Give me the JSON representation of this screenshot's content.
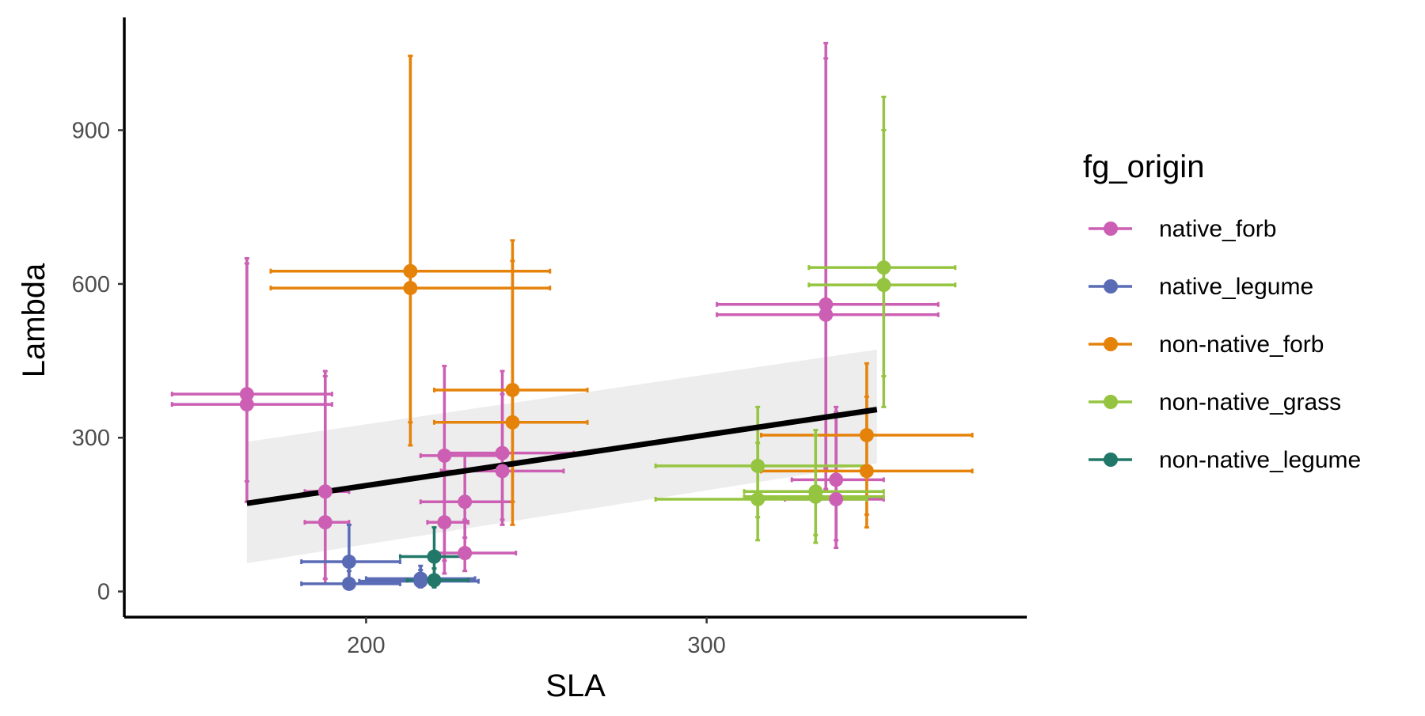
{
  "chart_data": {
    "type": "scatter",
    "xlabel": "SLA",
    "ylabel": "Lambda",
    "xlim": [
      129,
      394
    ],
    "ylim": [
      -50,
      1120
    ],
    "x_ticks": [
      200,
      300
    ],
    "x_tick_labels": [
      "200",
      "300"
    ],
    "y_ticks": [
      0,
      300,
      600,
      900
    ],
    "y_tick_labels": [
      "0",
      "300",
      "600",
      "900"
    ],
    "grid": false,
    "legend": {
      "title": "fg_origin",
      "placement": "right",
      "entries": [
        "native_forb",
        "native_legume",
        "non-native_forb",
        "non-native_grass",
        "non-native_legume"
      ]
    },
    "colors": {
      "native_forb": "#cc5fb3",
      "native_legume": "#5a6bb5",
      "non-native_forb": "#e5820a",
      "non-native_grass": "#95c540",
      "non-native_legume": "#217869",
      "fit_line": "#000000",
      "confidence_band": "#ebebeb"
    },
    "fit": {
      "method": "linear",
      "x": [
        165,
        350
      ],
      "y": [
        172,
        355
      ],
      "band_lower": [
        55,
        250
      ],
      "band_upper": [
        292,
        472
      ]
    },
    "series": [
      {
        "name": "native_forb",
        "points": [
          {
            "x": 165,
            "y": 385,
            "xmin": 143,
            "xmax": 190,
            "ymin": 175,
            "ymax": 650
          },
          {
            "x": 165,
            "y": 365,
            "xmin": 143,
            "xmax": 190,
            "ymin": 215,
            "ymax": 640
          },
          {
            "x": 188,
            "y": 195,
            "xmin": 182,
            "xmax": 195,
            "ymin": 25,
            "ymax": 430
          },
          {
            "x": 188,
            "y": 135,
            "xmin": 182,
            "xmax": 195,
            "ymin": 15,
            "ymax": 420
          },
          {
            "x": 223,
            "y": 265,
            "xmin": 216,
            "xmax": 241,
            "ymin": 60,
            "ymax": 440
          },
          {
            "x": 223,
            "y": 135,
            "xmin": 218,
            "xmax": 230,
            "ymin": 35,
            "ymax": 265
          },
          {
            "x": 229,
            "y": 175,
            "xmin": 216,
            "xmax": 243,
            "ymin": 105,
            "ymax": 270
          },
          {
            "x": 229,
            "y": 75,
            "xmin": 219,
            "xmax": 244,
            "ymin": 40,
            "ymax": 140
          },
          {
            "x": 240,
            "y": 270,
            "xmin": 224,
            "xmax": 261,
            "ymin": 130,
            "ymax": 430
          },
          {
            "x": 240,
            "y": 235,
            "xmin": 222,
            "xmax": 258,
            "ymin": 140,
            "ymax": 385
          },
          {
            "x": 335,
            "y": 560,
            "xmin": 303,
            "xmax": 368,
            "ymin": 240,
            "ymax": 1070
          },
          {
            "x": 335,
            "y": 540,
            "xmin": 303,
            "xmax": 368,
            "ymin": 200,
            "ymax": 1040
          },
          {
            "x": 338,
            "y": 218,
            "xmin": 325,
            "xmax": 352,
            "ymin": 100,
            "ymax": 360
          },
          {
            "x": 338,
            "y": 180,
            "xmin": 323,
            "xmax": 352,
            "ymin": 85,
            "ymax": 350
          }
        ]
      },
      {
        "name": "native_legume",
        "points": [
          {
            "x": 195,
            "y": 58,
            "xmin": 181,
            "xmax": 210,
            "ymin": 20,
            "ymax": 130
          },
          {
            "x": 195,
            "y": 15,
            "xmin": 181,
            "xmax": 210,
            "ymin": 5,
            "ymax": 40
          },
          {
            "x": 216,
            "y": 25,
            "xmin": 200,
            "xmax": 232,
            "ymin": 10,
            "ymax": 50
          },
          {
            "x": 216,
            "y": 20,
            "xmin": 198,
            "xmax": 233,
            "ymin": 8,
            "ymax": 42
          }
        ]
      },
      {
        "name": "non-native_forb",
        "points": [
          {
            "x": 213,
            "y": 625,
            "xmin": 172,
            "xmax": 254,
            "ymin": 330,
            "ymax": 1045
          },
          {
            "x": 213,
            "y": 592,
            "xmin": 172,
            "xmax": 254,
            "ymin": 285,
            "ymax": 1045
          },
          {
            "x": 243,
            "y": 393,
            "xmin": 220,
            "xmax": 265,
            "ymin": 175,
            "ymax": 685
          },
          {
            "x": 243,
            "y": 330,
            "xmin": 220,
            "xmax": 265,
            "ymin": 130,
            "ymax": 645
          },
          {
            "x": 347,
            "y": 305,
            "xmin": 316,
            "xmax": 378,
            "ymin": 150,
            "ymax": 445
          },
          {
            "x": 347,
            "y": 235,
            "xmin": 316,
            "xmax": 378,
            "ymin": 125,
            "ymax": 380
          }
        ]
      },
      {
        "name": "non-native_grass",
        "points": [
          {
            "x": 352,
            "y": 632,
            "xmin": 330,
            "xmax": 373,
            "ymin": 420,
            "ymax": 965
          },
          {
            "x": 352,
            "y": 598,
            "xmin": 330,
            "xmax": 373,
            "ymin": 360,
            "ymax": 900
          },
          {
            "x": 315,
            "y": 245,
            "xmin": 285,
            "xmax": 347,
            "ymin": 145,
            "ymax": 360
          },
          {
            "x": 315,
            "y": 180,
            "xmin": 285,
            "xmax": 347,
            "ymin": 100,
            "ymax": 290
          },
          {
            "x": 332,
            "y": 195,
            "xmin": 311,
            "xmax": 352,
            "ymin": 110,
            "ymax": 315
          },
          {
            "x": 332,
            "y": 185,
            "xmin": 311,
            "xmax": 352,
            "ymin": 95,
            "ymax": 305
          }
        ]
      },
      {
        "name": "non-native_legume",
        "points": [
          {
            "x": 220,
            "y": 68,
            "xmin": 210,
            "xmax": 230,
            "ymin": 25,
            "ymax": 125
          },
          {
            "x": 220,
            "y": 22,
            "xmin": 212,
            "xmax": 230,
            "ymin": 8,
            "ymax": 45
          }
        ]
      }
    ]
  }
}
